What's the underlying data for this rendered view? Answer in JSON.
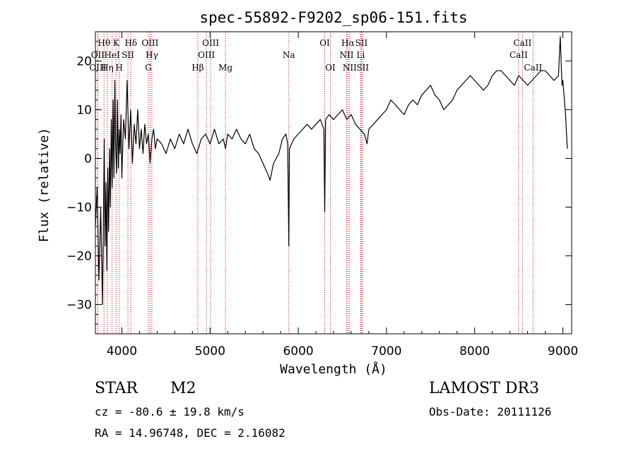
{
  "chart_data": {
    "type": "line",
    "title": "spec-55892-F9202_sp06-151.fits",
    "xlabel": "Wavelength (Å)",
    "ylabel": "Flux (relative)",
    "xlim": [
      3700,
      9100
    ],
    "ylim": [
      -36,
      26
    ],
    "x_ticks": [
      4000,
      5000,
      6000,
      7000,
      8000,
      9000
    ],
    "y_ticks": [
      -30,
      -20,
      -10,
      0,
      10,
      20
    ],
    "line_color": "#000000",
    "marker_color": "#cc0000",
    "line_markers": [
      {
        "label": "Hθ",
        "x": 3798,
        "row": 0
      },
      {
        "label": "OII",
        "x": 3727,
        "row": 1
      },
      {
        "label": "OIII",
        "x": 3727,
        "row": 2
      },
      {
        "label": "Hη",
        "x": 3835,
        "row": 2
      },
      {
        "label": "HeI",
        "x": 3889,
        "row": 1
      },
      {
        "label": "K",
        "x": 3934,
        "row": 0
      },
      {
        "label": "H",
        "x": 3969,
        "row": 2
      },
      {
        "label": "SII",
        "x": 4069,
        "row": 1
      },
      {
        "label": "Hδ",
        "x": 4102,
        "row": 0
      },
      {
        "label": "OIII",
        "x": 4320,
        "row": 0
      },
      {
        "label": "Hγ",
        "x": 4340,
        "row": 1
      },
      {
        "label": "G",
        "x": 4300,
        "row": 2
      },
      {
        "label": "Hβ",
        "x": 4861,
        "row": 2
      },
      {
        "label": "OIII",
        "x": 4959,
        "row": 1
      },
      {
        "label": "OIII",
        "x": 5007,
        "row": 0
      },
      {
        "label": "Mg",
        "x": 5175,
        "row": 2
      },
      {
        "label": "Na",
        "x": 5893,
        "row": 1
      },
      {
        "label": "OI",
        "x": 6300,
        "row": 0
      },
      {
        "label": "OI",
        "x": 6364,
        "row": 2
      },
      {
        "label": "NII",
        "x": 6548,
        "row": 1
      },
      {
        "label": "Hα",
        "x": 6563,
        "row": 0
      },
      {
        "label": "NII",
        "x": 6583,
        "row": 2
      },
      {
        "label": "SII",
        "x": 6716,
        "row": 0
      },
      {
        "label": "Li",
        "x": 6708,
        "row": 1
      },
      {
        "label": "SII",
        "x": 6731,
        "row": 2
      },
      {
        "label": "CaII",
        "x": 8498,
        "row": 1
      },
      {
        "label": "CaII",
        "x": 8542,
        "row": 0
      },
      {
        "label": "CaII",
        "x": 8662,
        "row": 2
      }
    ],
    "series": [
      {
        "name": "flux",
        "points": [
          [
            3700,
            -14
          ],
          [
            3720,
            -6
          ],
          [
            3740,
            -25
          ],
          [
            3760,
            -10
          ],
          [
            3780,
            -30
          ],
          [
            3790,
            -15
          ],
          [
            3800,
            4
          ],
          [
            3810,
            -18
          ],
          [
            3820,
            -5
          ],
          [
            3830,
            -23
          ],
          [
            3840,
            -2
          ],
          [
            3850,
            -15
          ],
          [
            3860,
            2
          ],
          [
            3870,
            -10
          ],
          [
            3880,
            8
          ],
          [
            3890,
            -6
          ],
          [
            3900,
            12
          ],
          [
            3910,
            -4
          ],
          [
            3920,
            16
          ],
          [
            3930,
            2
          ],
          [
            3940,
            -3
          ],
          [
            3950,
            12
          ],
          [
            3960,
            -2
          ],
          [
            3970,
            6
          ],
          [
            3980,
            1
          ],
          [
            3990,
            9
          ],
          [
            4000,
            -4
          ],
          [
            4020,
            8
          ],
          [
            4040,
            4
          ],
          [
            4060,
            16
          ],
          [
            4080,
            2
          ],
          [
            4100,
            10
          ],
          [
            4120,
            -1
          ],
          [
            4140,
            7
          ],
          [
            4160,
            3
          ],
          [
            4180,
            10
          ],
          [
            4200,
            2
          ],
          [
            4220,
            6
          ],
          [
            4240,
            1
          ],
          [
            4260,
            7
          ],
          [
            4280,
            3
          ],
          [
            4300,
            5
          ],
          [
            4320,
            -1
          ],
          [
            4340,
            4
          ],
          [
            4360,
            6
          ],
          [
            4380,
            2
          ],
          [
            4400,
            4
          ],
          [
            4450,
            3
          ],
          [
            4500,
            1
          ],
          [
            4550,
            4
          ],
          [
            4600,
            2
          ],
          [
            4650,
            5
          ],
          [
            4700,
            3
          ],
          [
            4750,
            6
          ],
          [
            4800,
            3
          ],
          [
            4850,
            1
          ],
          [
            4900,
            4
          ],
          [
            4950,
            5
          ],
          [
            5000,
            3
          ],
          [
            5050,
            6
          ],
          [
            5100,
            3
          ],
          [
            5150,
            4
          ],
          [
            5175,
            2
          ],
          [
            5200,
            5
          ],
          [
            5250,
            4
          ],
          [
            5300,
            6
          ],
          [
            5350,
            4
          ],
          [
            5400,
            3
          ],
          [
            5450,
            5
          ],
          [
            5500,
            2
          ],
          [
            5550,
            1
          ],
          [
            5600,
            -1
          ],
          [
            5650,
            -3
          ],
          [
            5680,
            -4.5
          ],
          [
            5720,
            -1
          ],
          [
            5780,
            1
          ],
          [
            5820,
            4
          ],
          [
            5860,
            5
          ],
          [
            5880,
            3
          ],
          [
            5893,
            -18
          ],
          [
            5900,
            2
          ],
          [
            5950,
            4
          ],
          [
            6000,
            5
          ],
          [
            6050,
            6
          ],
          [
            6100,
            7
          ],
          [
            6150,
            6
          ],
          [
            6200,
            7
          ],
          [
            6250,
            8
          ],
          [
            6290,
            6
          ],
          [
            6300,
            -11
          ],
          [
            6310,
            8
          ],
          [
            6350,
            9
          ],
          [
            6400,
            8
          ],
          [
            6450,
            9
          ],
          [
            6500,
            10
          ],
          [
            6550,
            8
          ],
          [
            6600,
            9
          ],
          [
            6650,
            7
          ],
          [
            6700,
            6
          ],
          [
            6750,
            5
          ],
          [
            6780,
            3
          ],
          [
            6800,
            6
          ],
          [
            6850,
            7
          ],
          [
            6900,
            8
          ],
          [
            6950,
            9
          ],
          [
            7000,
            10
          ],
          [
            7050,
            12
          ],
          [
            7100,
            11
          ],
          [
            7150,
            10
          ],
          [
            7200,
            9
          ],
          [
            7250,
            11
          ],
          [
            7300,
            12
          ],
          [
            7350,
            11
          ],
          [
            7400,
            13
          ],
          [
            7450,
            14
          ],
          [
            7500,
            15
          ],
          [
            7550,
            13
          ],
          [
            7600,
            12
          ],
          [
            7650,
            10
          ],
          [
            7700,
            11
          ],
          [
            7750,
            12
          ],
          [
            7800,
            14
          ],
          [
            7850,
            15
          ],
          [
            7900,
            16
          ],
          [
            7950,
            17
          ],
          [
            8000,
            16
          ],
          [
            8050,
            15
          ],
          [
            8100,
            14
          ],
          [
            8150,
            15
          ],
          [
            8200,
            17
          ],
          [
            8250,
            18
          ],
          [
            8300,
            18
          ],
          [
            8350,
            17
          ],
          [
            8400,
            16
          ],
          [
            8450,
            15
          ],
          [
            8500,
            17
          ],
          [
            8550,
            16
          ],
          [
            8600,
            15
          ],
          [
            8650,
            16
          ],
          [
            8700,
            17
          ],
          [
            8750,
            18
          ],
          [
            8800,
            18
          ],
          [
            8850,
            17
          ],
          [
            8900,
            16
          ],
          [
            8950,
            17
          ],
          [
            8970,
            25
          ],
          [
            8990,
            15
          ],
          [
            9000,
            16
          ],
          [
            9030,
            9
          ],
          [
            9050,
            2
          ]
        ]
      }
    ]
  },
  "footer": {
    "object_class": "STAR",
    "subclass": "M2",
    "survey": "LAMOST DR3",
    "redshift_text": "cz = -80.6 ± 19.8 km/s",
    "obs_date": "Obs-Date: 20111126",
    "coords": "RA =  14.96748, DEC =   2.16082"
  }
}
